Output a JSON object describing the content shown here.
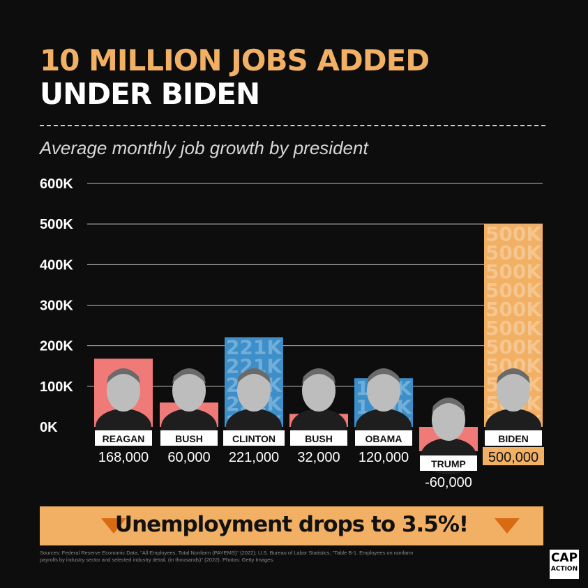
{
  "header": {
    "title_line1": "10 MILLION JOBS ADDED",
    "title_line2": "UNDER BIDEN",
    "subtitle": "Average monthly job growth by president"
  },
  "chart_data": {
    "type": "bar",
    "categories": [
      "REAGAN",
      "BUSH",
      "CLINTON",
      "BUSH",
      "OBAMA",
      "TRUMP",
      "BIDEN"
    ],
    "values": [
      168000,
      60000,
      221000,
      32000,
      120000,
      -60000,
      500000
    ],
    "value_labels": [
      "168,000",
      "60,000",
      "221,000",
      "32,000",
      "120,000",
      "-60,000",
      "500,000"
    ],
    "bar_watermarks": [
      "",
      "",
      "221K",
      "",
      "120K",
      "",
      "500K"
    ],
    "bar_colors": [
      "#f07a78",
      "#f07a78",
      "#3d8fc9",
      "#f07a78",
      "#3d8fc9",
      "#f07a78",
      "#f1b064"
    ],
    "yticks": [
      "600K",
      "500K",
      "400K",
      "300K",
      "200K",
      "100K",
      "0K"
    ],
    "ylim": [
      0,
      600000
    ],
    "grid": true
  },
  "banner": {
    "text": "Unemployment drops to 3.5%!"
  },
  "footer": {
    "source": "Sources: Federal Reserve Economic Data, \"All Employees, Total Nonfarm (PAYEMS)\" (2022); U.S. Bureau of Labor Statistics, \"Table B-1. Employees on nonfarm payrolls by industry sector and selected industry detail, (in thousands)\" (2022). Photos: Getty Images.",
    "logo_line1": "CAP",
    "logo_line2": "ACTION"
  },
  "colors": {
    "accent": "#f1b064",
    "red_bar": "#f07a78",
    "blue_bar": "#3d8fc9",
    "banner_arrow": "#d86a12"
  }
}
